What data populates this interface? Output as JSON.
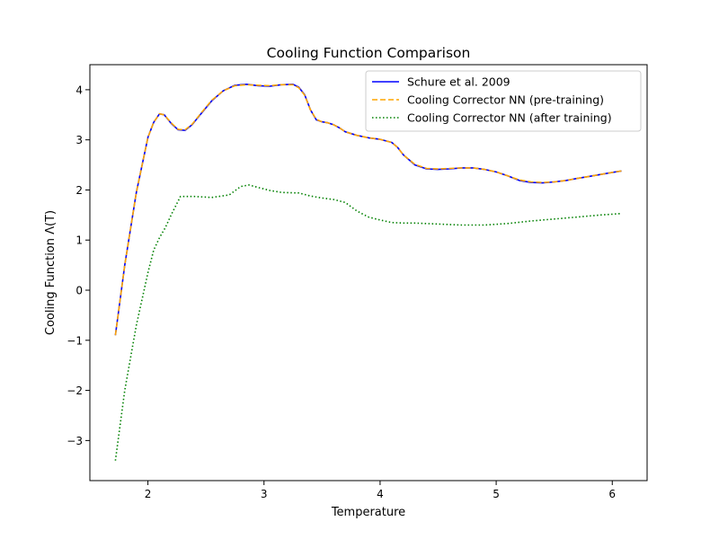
{
  "chart_data": {
    "type": "line",
    "title": "Cooling Function Comparison",
    "xlabel": "Temperature",
    "ylabel": "Cooling Function Λ(T)",
    "xlim": [
      1.5,
      6.3
    ],
    "ylim": [
      -3.8,
      4.5
    ],
    "xticks": [
      2,
      3,
      4,
      5,
      6
    ],
    "yticks": [
      -3,
      -2,
      -1,
      0,
      1,
      2,
      3,
      4
    ],
    "grid": false,
    "legend_position": "top-right",
    "series": [
      {
        "name": "Schure et al. 2009",
        "color": "#0000ff",
        "style": "solid",
        "x": [
          1.72,
          1.8,
          1.9,
          2.0,
          2.05,
          2.1,
          2.14,
          2.2,
          2.26,
          2.32,
          2.38,
          2.45,
          2.55,
          2.65,
          2.75,
          2.85,
          2.95,
          3.05,
          3.15,
          3.25,
          3.3,
          3.35,
          3.4,
          3.45,
          3.5,
          3.55,
          3.6,
          3.65,
          3.7,
          3.8,
          3.9,
          4.0,
          4.1,
          4.15,
          4.2,
          4.3,
          4.4,
          4.5,
          4.6,
          4.7,
          4.8,
          4.9,
          5.0,
          5.1,
          5.2,
          5.3,
          5.4,
          5.5,
          5.6,
          5.7,
          5.8,
          5.9,
          6.0,
          6.08
        ],
        "y": [
          -0.9,
          0.5,
          1.95,
          3.05,
          3.35,
          3.52,
          3.5,
          3.33,
          3.2,
          3.19,
          3.3,
          3.5,
          3.78,
          3.98,
          4.09,
          4.11,
          4.08,
          4.07,
          4.1,
          4.11,
          4.05,
          3.9,
          3.6,
          3.4,
          3.36,
          3.34,
          3.3,
          3.24,
          3.16,
          3.09,
          3.04,
          3.01,
          2.95,
          2.85,
          2.7,
          2.5,
          2.42,
          2.41,
          2.42,
          2.44,
          2.44,
          2.41,
          2.36,
          2.28,
          2.19,
          2.15,
          2.14,
          2.16,
          2.19,
          2.23,
          2.27,
          2.31,
          2.35,
          2.38
        ]
      },
      {
        "name": "Cooling Corrector NN (pre-training)",
        "color": "#ffa500",
        "style": "dashed",
        "x": [
          1.72,
          1.8,
          1.9,
          2.0,
          2.05,
          2.1,
          2.14,
          2.2,
          2.26,
          2.32,
          2.38,
          2.45,
          2.55,
          2.65,
          2.75,
          2.85,
          2.95,
          3.05,
          3.15,
          3.25,
          3.3,
          3.35,
          3.4,
          3.45,
          3.5,
          3.55,
          3.6,
          3.65,
          3.7,
          3.8,
          3.9,
          4.0,
          4.1,
          4.15,
          4.2,
          4.3,
          4.4,
          4.5,
          4.6,
          4.7,
          4.8,
          4.9,
          5.0,
          5.1,
          5.2,
          5.3,
          5.4,
          5.5,
          5.6,
          5.7,
          5.8,
          5.9,
          6.0,
          6.08
        ],
        "y": [
          -0.9,
          0.5,
          1.95,
          3.05,
          3.35,
          3.52,
          3.5,
          3.34,
          3.21,
          3.2,
          3.31,
          3.51,
          3.79,
          3.98,
          4.08,
          4.1,
          4.09,
          4.08,
          4.1,
          4.1,
          4.04,
          3.89,
          3.6,
          3.41,
          3.36,
          3.34,
          3.3,
          3.24,
          3.16,
          3.09,
          3.04,
          3.01,
          2.95,
          2.85,
          2.7,
          2.51,
          2.43,
          2.42,
          2.43,
          2.44,
          2.44,
          2.41,
          2.36,
          2.28,
          2.2,
          2.16,
          2.15,
          2.16,
          2.19,
          2.23,
          2.27,
          2.31,
          2.35,
          2.38
        ]
      },
      {
        "name": "Cooling Corrector NN (after training)",
        "color": "#008000",
        "style": "dotted",
        "x": [
          1.72,
          1.8,
          1.9,
          2.0,
          2.05,
          2.1,
          2.15,
          2.2,
          2.28,
          2.4,
          2.55,
          2.7,
          2.8,
          2.87,
          2.95,
          3.05,
          3.15,
          3.3,
          3.4,
          3.5,
          3.6,
          3.7,
          3.8,
          3.9,
          4.0,
          4.1,
          4.2,
          4.3,
          4.5,
          4.7,
          4.9,
          5.1,
          5.3,
          5.5,
          5.7,
          5.9,
          6.08
        ],
        "y": [
          -3.4,
          -2.0,
          -0.7,
          0.35,
          0.8,
          1.05,
          1.25,
          1.5,
          1.87,
          1.87,
          1.85,
          1.9,
          2.07,
          2.1,
          2.05,
          1.99,
          1.95,
          1.94,
          1.88,
          1.84,
          1.81,
          1.75,
          1.58,
          1.46,
          1.4,
          1.35,
          1.34,
          1.34,
          1.32,
          1.3,
          1.3,
          1.33,
          1.38,
          1.42,
          1.46,
          1.5,
          1.53
        ]
      }
    ]
  }
}
